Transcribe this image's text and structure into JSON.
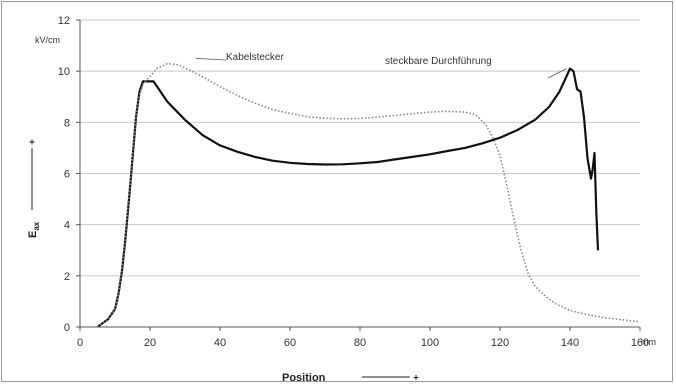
{
  "chart_data": {
    "type": "line",
    "title": "",
    "xlabel": "Position",
    "ylabel": "E",
    "ylabel_sub": "ax",
    "x_unit": "mm",
    "y_unit": "kV/cm",
    "xlim": [
      0,
      160
    ],
    "ylim": [
      0,
      12
    ],
    "x_ticks": [
      0,
      20,
      40,
      60,
      80,
      100,
      120,
      140,
      160
    ],
    "y_ticks": [
      0,
      2,
      4,
      6,
      8,
      10,
      12
    ],
    "grid": {
      "horizontal": true,
      "vertical": false
    },
    "series": [
      {
        "style": "solid",
        "color": "#111111",
        "points": [
          [
            5,
            0
          ],
          [
            6,
            0.1
          ],
          [
            8,
            0.3
          ],
          [
            10,
            0.7
          ],
          [
            11,
            1.3
          ],
          [
            12,
            2.2
          ],
          [
            13,
            3.5
          ],
          [
            14,
            5.0
          ],
          [
            15,
            6.6
          ],
          [
            16,
            8.2
          ],
          [
            17,
            9.2
          ],
          [
            18,
            9.6
          ],
          [
            19,
            9.6
          ],
          [
            20,
            9.6
          ],
          [
            21,
            9.6
          ],
          [
            22,
            9.4
          ],
          [
            25,
            8.8
          ],
          [
            30,
            8.1
          ],
          [
            35,
            7.5
          ],
          [
            40,
            7.1
          ],
          [
            45,
            6.85
          ],
          [
            50,
            6.65
          ],
          [
            55,
            6.5
          ],
          [
            60,
            6.42
          ],
          [
            65,
            6.37
          ],
          [
            70,
            6.35
          ],
          [
            75,
            6.36
          ],
          [
            80,
            6.4
          ],
          [
            85,
            6.45
          ],
          [
            90,
            6.55
          ],
          [
            95,
            6.65
          ],
          [
            100,
            6.75
          ],
          [
            105,
            6.88
          ],
          [
            110,
            7.0
          ],
          [
            115,
            7.18
          ],
          [
            120,
            7.4
          ],
          [
            125,
            7.7
          ],
          [
            130,
            8.1
          ],
          [
            134,
            8.6
          ],
          [
            137,
            9.2
          ],
          [
            139,
            9.8
          ],
          [
            140,
            10.1
          ],
          [
            141,
            10.0
          ],
          [
            142,
            9.3
          ],
          [
            143,
            9.2
          ],
          [
            144,
            8.2
          ],
          [
            145,
            6.6
          ],
          [
            146,
            5.8
          ],
          [
            146.5,
            6.2
          ],
          [
            147,
            6.8
          ],
          [
            147.5,
            4.5
          ],
          [
            148,
            3.0
          ]
        ]
      },
      {
        "style": "dotted",
        "color": "#888888",
        "points": [
          [
            5,
            0
          ],
          [
            6,
            0.1
          ],
          [
            8,
            0.3
          ],
          [
            10,
            0.7
          ],
          [
            11,
            1.3
          ],
          [
            12,
            2.3
          ],
          [
            13,
            3.6
          ],
          [
            14,
            5.1
          ],
          [
            15,
            6.7
          ],
          [
            16,
            8.2
          ],
          [
            17,
            9.1
          ],
          [
            18,
            9.5
          ],
          [
            20,
            9.8
          ],
          [
            22,
            10.1
          ],
          [
            25,
            10.3
          ],
          [
            28,
            10.25
          ],
          [
            32,
            10.0
          ],
          [
            36,
            9.7
          ],
          [
            40,
            9.4
          ],
          [
            45,
            9.05
          ],
          [
            50,
            8.75
          ],
          [
            55,
            8.5
          ],
          [
            60,
            8.35
          ],
          [
            65,
            8.22
          ],
          [
            70,
            8.16
          ],
          [
            75,
            8.14
          ],
          [
            80,
            8.15
          ],
          [
            85,
            8.2
          ],
          [
            90,
            8.27
          ],
          [
            95,
            8.34
          ],
          [
            100,
            8.4
          ],
          [
            105,
            8.43
          ],
          [
            110,
            8.4
          ],
          [
            113,
            8.3
          ],
          [
            116,
            7.9
          ],
          [
            118,
            7.4
          ],
          [
            120,
            6.7
          ],
          [
            122,
            5.5
          ],
          [
            124,
            4.2
          ],
          [
            126,
            3.0
          ],
          [
            128,
            2.1
          ],
          [
            130,
            1.6
          ],
          [
            133,
            1.2
          ],
          [
            136,
            0.9
          ],
          [
            140,
            0.65
          ],
          [
            145,
            0.48
          ],
          [
            150,
            0.36
          ],
          [
            155,
            0.28
          ],
          [
            160,
            0.2
          ]
        ]
      }
    ],
    "annotations": [
      {
        "text": "Kabelstecker",
        "x": 33,
        "y": 10.5
      },
      {
        "text": "steckbare Durchführung",
        "x": 139,
        "y": 10.1
      }
    ]
  }
}
